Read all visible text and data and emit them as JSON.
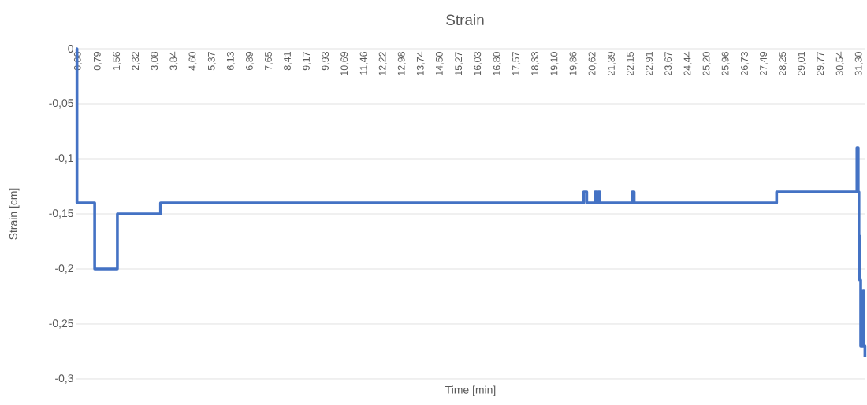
{
  "chart_data": {
    "type": "step",
    "title": "Strain",
    "xlabel": "Time [min]",
    "ylabel": "Strain [cm]",
    "x": [
      0.0,
      0.02,
      0.73,
      1.64,
      3.37,
      20.33,
      20.45,
      20.78,
      20.86,
      20.9,
      20.98,
      22.27,
      22.35,
      28.06,
      31.28,
      31.33,
      31.36,
      31.39,
      31.43,
      31.52,
      31.56,
      31.6
    ],
    "series": [
      {
        "color": "#4472c4",
        "values": [
          0,
          -0.14,
          -0.2,
          -0.15,
          -0.14,
          -0.13,
          -0.14,
          -0.13,
          -0.14,
          -0.13,
          -0.14,
          -0.13,
          -0.14,
          -0.13,
          -0.09,
          -0.13,
          -0.17,
          -0.21,
          -0.27,
          -0.22,
          -0.27,
          -0.28
        ]
      }
    ],
    "xlim": [
      0,
      31.62
    ],
    "ylim": [
      -0.3,
      0
    ],
    "xticks": [
      {
        "value": 0.0,
        "label": "0,00"
      },
      {
        "value": 0.79,
        "label": "0,79"
      },
      {
        "value": 1.56,
        "label": "1,56"
      },
      {
        "value": 2.32,
        "label": "2,32"
      },
      {
        "value": 3.08,
        "label": "3,08"
      },
      {
        "value": 3.84,
        "label": "3,84"
      },
      {
        "value": 4.6,
        "label": "4,60"
      },
      {
        "value": 5.37,
        "label": "5,37"
      },
      {
        "value": 6.13,
        "label": "6,13"
      },
      {
        "value": 6.89,
        "label": "6,89"
      },
      {
        "value": 7.65,
        "label": "7,65"
      },
      {
        "value": 8.41,
        "label": "8,41"
      },
      {
        "value": 9.17,
        "label": "9,17"
      },
      {
        "value": 9.93,
        "label": "9,93"
      },
      {
        "value": 10.69,
        "label": "10,69"
      },
      {
        "value": 11.46,
        "label": "11,46"
      },
      {
        "value": 12.22,
        "label": "12,22"
      },
      {
        "value": 12.98,
        "label": "12,98"
      },
      {
        "value": 13.74,
        "label": "13,74"
      },
      {
        "value": 14.5,
        "label": "14,50"
      },
      {
        "value": 15.27,
        "label": "15,27"
      },
      {
        "value": 16.03,
        "label": "16,03"
      },
      {
        "value": 16.8,
        "label": "16,80"
      },
      {
        "value": 17.57,
        "label": "17,57"
      },
      {
        "value": 18.33,
        "label": "18,33"
      },
      {
        "value": 19.1,
        "label": "19,10"
      },
      {
        "value": 19.86,
        "label": "19,86"
      },
      {
        "value": 20.62,
        "label": "20,62"
      },
      {
        "value": 21.39,
        "label": "21,39"
      },
      {
        "value": 22.15,
        "label": "22,15"
      },
      {
        "value": 22.91,
        "label": "22,91"
      },
      {
        "value": 23.67,
        "label": "23,67"
      },
      {
        "value": 24.44,
        "label": "24,44"
      },
      {
        "value": 25.2,
        "label": "25,20"
      },
      {
        "value": 25.96,
        "label": "25,96"
      },
      {
        "value": 26.73,
        "label": "26,73"
      },
      {
        "value": 27.49,
        "label": "27,49"
      },
      {
        "value": 28.25,
        "label": "28,25"
      },
      {
        "value": 29.01,
        "label": "29,01"
      },
      {
        "value": 29.77,
        "label": "29,77"
      },
      {
        "value": 30.54,
        "label": "30,54"
      },
      {
        "value": 31.3,
        "label": "31,30"
      }
    ],
    "yticks": [
      {
        "value": -0.3,
        "label": "-0,3"
      },
      {
        "value": -0.25,
        "label": "-0,25"
      },
      {
        "value": -0.2,
        "label": "-0,2"
      },
      {
        "value": -0.15,
        "label": "-0,15"
      },
      {
        "value": -0.1,
        "label": "-0,1"
      },
      {
        "value": -0.05,
        "label": "-0,05"
      },
      0
    ],
    "grid": "y"
  }
}
